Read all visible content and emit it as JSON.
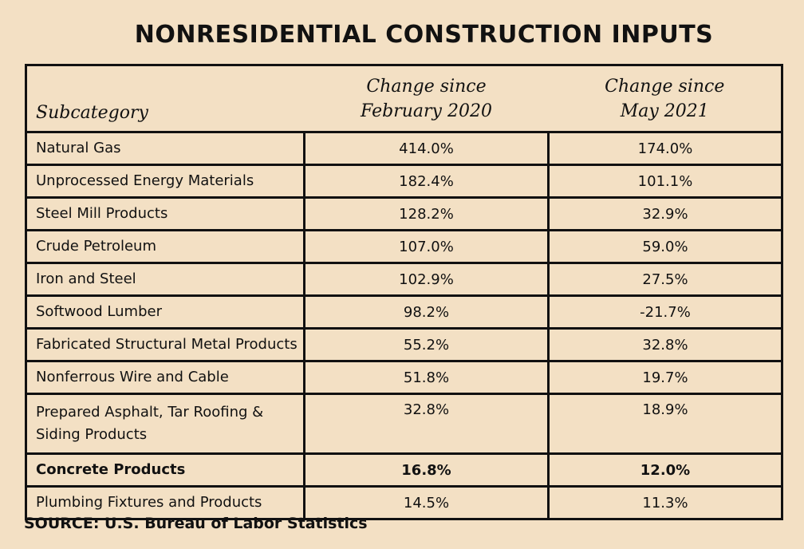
{
  "title": "NONRESIDENTIAL CONSTRUCTION INPUTS",
  "table": {
    "headers": {
      "subcategory": "Subcategory",
      "feb2020_line1": "Change since",
      "feb2020_line2": "February 2020",
      "may2021_line1": "Change since",
      "may2021_line2": "May 2021"
    },
    "rows": [
      {
        "name": "Natural Gas",
        "feb2020": "414.0%",
        "may2021": "174.0%"
      },
      {
        "name": "Unprocessed Energy Materials",
        "feb2020": "182.4%",
        "may2021": "101.1%"
      },
      {
        "name": "Steel Mill Products",
        "feb2020": "128.2%",
        "may2021": "32.9%"
      },
      {
        "name": "Crude Petroleum",
        "feb2020": "107.0%",
        "may2021": "59.0%"
      },
      {
        "name": "Iron and Steel",
        "feb2020": "102.9%",
        "may2021": "27.5%"
      },
      {
        "name": "Softwood Lumber",
        "feb2020": "98.2%",
        "may2021": "-21.7%"
      },
      {
        "name": "Fabricated Structural Metal Products",
        "feb2020": "55.2%",
        "may2021": "32.8%"
      },
      {
        "name": "Nonferrous Wire and Cable",
        "feb2020": "51.8%",
        "may2021": "19.7%"
      },
      {
        "name_line1": "Prepared Asphalt, Tar Roofing &",
        "name_line2": "Siding Products",
        "feb2020": "32.8%",
        "may2021": "18.9%"
      },
      {
        "name": "Concrete Products",
        "feb2020": "16.8%",
        "may2021": "12.0%",
        "bold": true
      },
      {
        "name": "Plumbing Fixtures and Products",
        "feb2020": "14.5%",
        "may2021": "11.3%"
      }
    ]
  },
  "source": "SOURCE: U.S. Bureau of Labor Statistics"
}
